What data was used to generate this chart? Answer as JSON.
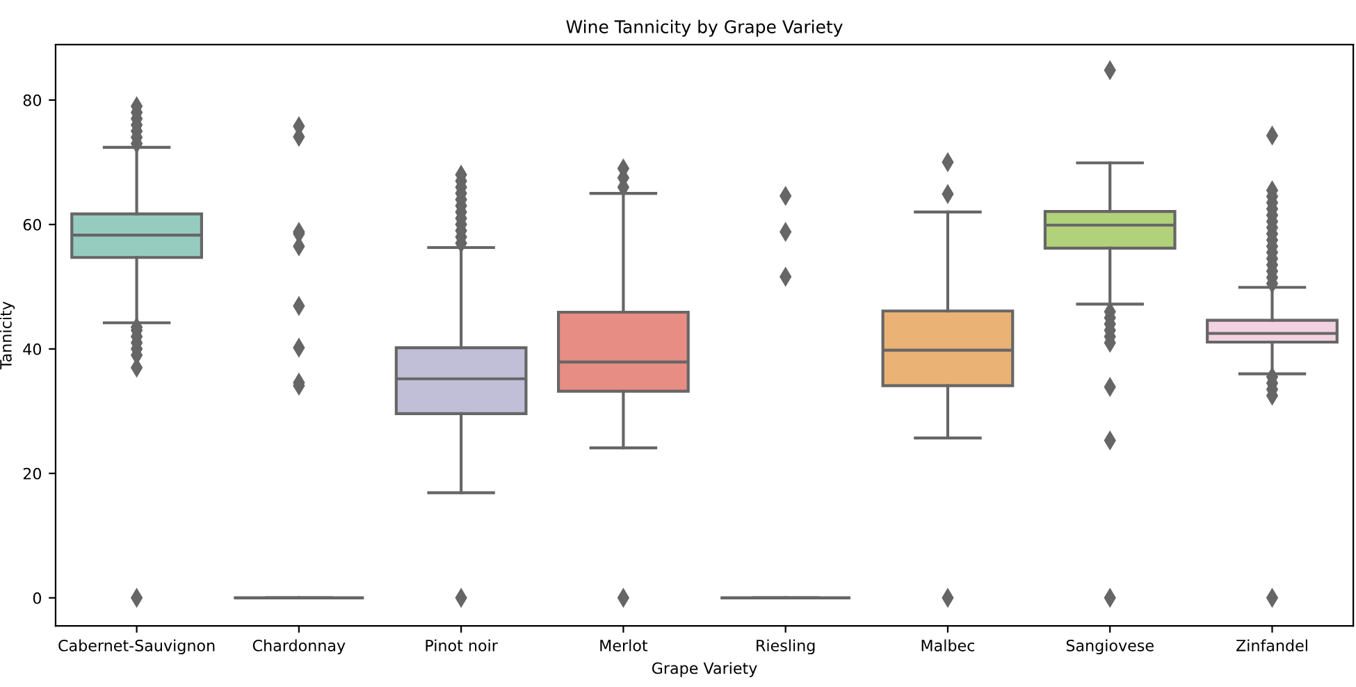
{
  "chart_data": {
    "type": "box",
    "title": "Wine Tannicity by Grape Variety",
    "xlabel": "Grape Variety",
    "ylabel": "Tannicity",
    "categories": [
      "Cabernet-Sauvignon",
      "Chardonnay",
      "Pinot noir",
      "Merlot",
      "Riesling",
      "Malbec",
      "Sangiovese",
      "Zinfandel"
    ],
    "colors": [
      "#96cbc0",
      null,
      "#c1bed8",
      "#e88d83",
      null,
      "#ebb276",
      "#b1d27a",
      "#f2d2e1"
    ],
    "boxes": [
      {
        "low": 44.2,
        "q1": 54.7,
        "median": 58.3,
        "q3": 61.7,
        "high": 72.4,
        "outliers": [
          73,
          74,
          75,
          76,
          77,
          78,
          79,
          43.5,
          43,
          42,
          41,
          40,
          39,
          37,
          0
        ]
      },
      {
        "low": 0,
        "q1": 0,
        "median": 0,
        "q3": 0,
        "high": 0,
        "outliers": [
          75.8,
          74.1,
          58.8,
          58.5,
          56.5,
          46.9,
          40.2,
          34.6,
          34.1
        ]
      },
      {
        "low": 16.9,
        "q1": 29.6,
        "median": 35.2,
        "q3": 40.2,
        "high": 56.3,
        "outliers": [
          57,
          58,
          59,
          60,
          61,
          62,
          63,
          64,
          65,
          66,
          67,
          68,
          0
        ]
      },
      {
        "low": 24.1,
        "q1": 33.2,
        "median": 37.9,
        "q3": 45.9,
        "high": 65.0,
        "outliers": [
          66,
          67.5,
          69,
          0
        ]
      },
      {
        "low": 0,
        "q1": 0,
        "median": 0,
        "q3": 0,
        "high": 0,
        "outliers": [
          64.6,
          58.8,
          51.6
        ]
      },
      {
        "low": 25.7,
        "q1": 34.1,
        "median": 39.8,
        "q3": 46.1,
        "high": 62.0,
        "outliers": [
          70.0,
          64.9,
          0
        ]
      },
      {
        "low": 47.2,
        "q1": 56.2,
        "median": 59.9,
        "q3": 62.1,
        "high": 69.9,
        "outliers": [
          84.8,
          46,
          45,
          44,
          43,
          42,
          41,
          33.9,
          25.3,
          0
        ]
      },
      {
        "low": 36.0,
        "q1": 41.1,
        "median": 42.5,
        "q3": 44.6,
        "high": 49.9,
        "outliers": [
          74.3,
          65.5,
          64.5,
          63.5,
          62.5,
          61.5,
          60.5,
          59.5,
          58.5,
          57.5,
          56.5,
          55.5,
          54.5,
          53.5,
          52.5,
          51.5,
          50.5,
          35.5,
          34.5,
          33.5,
          32.5,
          0
        ]
      }
    ],
    "ylim": [
      -4.5,
      88.9
    ],
    "yticks": [
      0,
      20,
      40,
      60,
      80
    ],
    "grid": false
  }
}
